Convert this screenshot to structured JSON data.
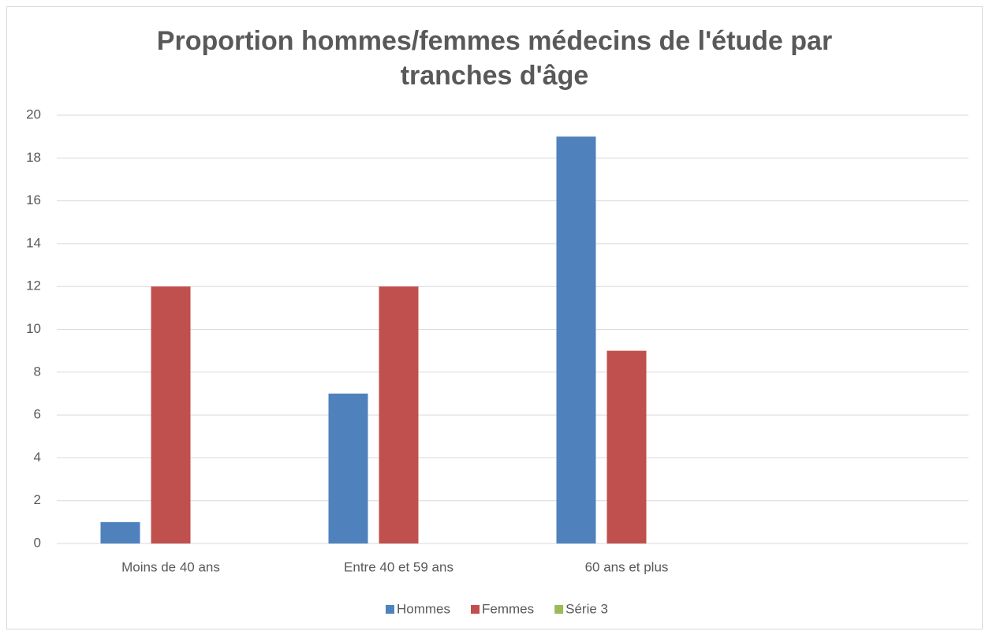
{
  "chart_data": {
    "type": "bar",
    "title": "Proportion hommes/femmes médecins de l'étude par tranches d'âge",
    "categories": [
      "Moins de 40 ans",
      "Entre 40 et 59 ans",
      "60 ans et plus",
      null
    ],
    "series": [
      {
        "name": "Hommes",
        "color": "#4f81bd",
        "values": [
          1,
          7,
          19,
          null
        ]
      },
      {
        "name": "Femmes",
        "color": "#c0504d",
        "values": [
          12,
          12,
          9,
          null
        ]
      },
      {
        "name": "Série 3",
        "color": "#9bbb59",
        "values": [
          null,
          null,
          null,
          null
        ]
      }
    ],
    "ylim": [
      0,
      20
    ],
    "yticks": [
      0,
      2,
      4,
      6,
      8,
      10,
      12,
      14,
      16,
      18,
      20
    ],
    "grid": true,
    "legend": "bottom"
  }
}
